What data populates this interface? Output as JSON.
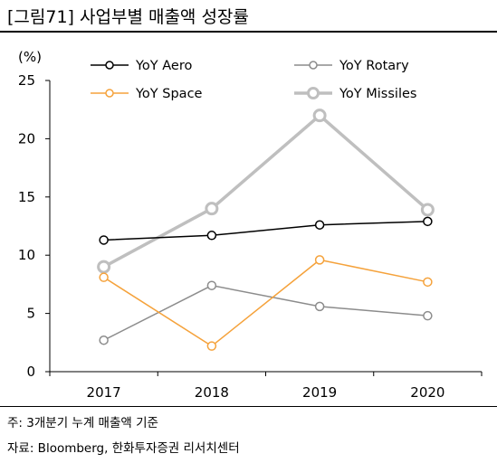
{
  "header": {
    "title": "[그림71]  사업부별 매출액 성장률"
  },
  "notes": {
    "note1": "주: 3개분기 누계 매출액 기준",
    "source": "자료: Bloomberg, 한화투자증권 리서치센터"
  },
  "chart_data": {
    "type": "line",
    "title": "",
    "xlabel": "",
    "ylabel": "",
    "yunit": "(%)",
    "categories": [
      "2017",
      "2018",
      "2019",
      "2020"
    ],
    "ylim": [
      0,
      25
    ],
    "yticks": [
      0,
      5,
      10,
      15,
      20,
      25
    ],
    "grid": false,
    "legend_placement": "top",
    "series": [
      {
        "name": "YoY Aero",
        "values": [
          11.3,
          11.7,
          12.6,
          12.9
        ],
        "color": "#000000",
        "style": "thin"
      },
      {
        "name": "YoY Rotary",
        "values": [
          2.7,
          7.4,
          5.6,
          4.8
        ],
        "color": "#8c8c8c",
        "style": "thin"
      },
      {
        "name": "YoY Space",
        "values": [
          8.1,
          2.2,
          9.6,
          7.7
        ],
        "color": "#f5a23b",
        "style": "thin"
      },
      {
        "name": "YoY Missiles",
        "values": [
          9.0,
          14.0,
          22.0,
          13.9
        ],
        "color": "#bfbfbf",
        "style": "thick"
      }
    ]
  }
}
